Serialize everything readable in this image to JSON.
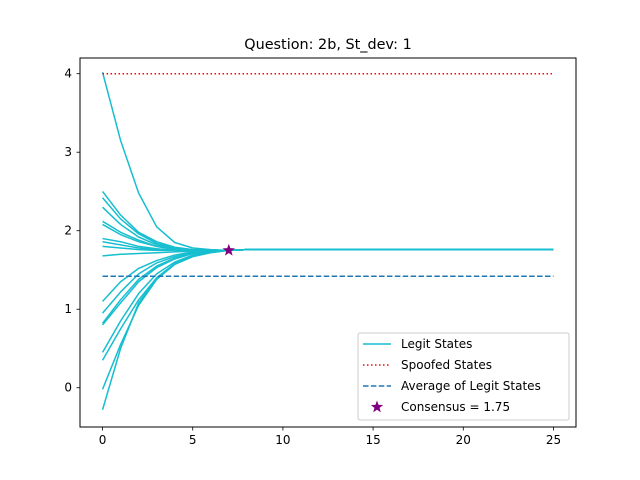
{
  "chart_data": {
    "type": "line",
    "title": "Question: 2b, St_dev: 1",
    "xlabel": "",
    "ylabel": "",
    "xlim": [
      -1.25,
      26.25
    ],
    "ylim": [
      -0.5,
      4.2
    ],
    "xticks": [
      0,
      5,
      10,
      15,
      20,
      25
    ],
    "yticks": [
      0,
      1,
      2,
      3,
      4
    ],
    "grid": false,
    "legend_position": "lower right",
    "legend": [
      {
        "label": "Legit States",
        "style": "solid",
        "color": "#17becf"
      },
      {
        "label": "Spoofed States",
        "style": "dotted",
        "color": "#ff0000"
      },
      {
        "label": "Average of Legit States",
        "style": "dashed",
        "color": "#1f77b4"
      },
      {
        "label": "Consensus = 1.75",
        "style": "star",
        "color": "#800080"
      }
    ],
    "series": [
      {
        "values": [
          4.02,
          3.15,
          2.48,
          2.05,
          1.85,
          1.78,
          1.76,
          1.75,
          1.76,
          1.76
        ]
      },
      {
        "values": [
          2.5,
          2.2,
          1.98,
          1.86,
          1.79,
          1.76,
          1.75,
          1.75,
          1.76,
          1.76
        ]
      },
      {
        "values": [
          2.42,
          2.15,
          1.96,
          1.84,
          1.78,
          1.76,
          1.75,
          1.75,
          1.76,
          1.76
        ]
      },
      {
        "values": [
          2.3,
          2.08,
          1.92,
          1.82,
          1.77,
          1.75,
          1.75,
          1.75,
          1.76,
          1.76
        ]
      },
      {
        "values": [
          2.12,
          1.98,
          1.88,
          1.8,
          1.76,
          1.75,
          1.75,
          1.75,
          1.76,
          1.76
        ]
      },
      {
        "values": [
          2.08,
          1.95,
          1.86,
          1.8,
          1.76,
          1.75,
          1.75,
          1.75,
          1.76,
          1.76
        ]
      },
      {
        "values": [
          1.9,
          1.86,
          1.8,
          1.77,
          1.75,
          1.75,
          1.75,
          1.75,
          1.76,
          1.76
        ]
      },
      {
        "values": [
          1.86,
          1.82,
          1.78,
          1.76,
          1.75,
          1.75,
          1.75,
          1.75,
          1.76,
          1.76
        ]
      },
      {
        "values": [
          1.8,
          1.78,
          1.76,
          1.75,
          1.75,
          1.75,
          1.75,
          1.75,
          1.76,
          1.76
        ]
      },
      {
        "values": [
          1.68,
          1.7,
          1.71,
          1.72,
          1.73,
          1.74,
          1.75,
          1.75,
          1.76,
          1.76
        ]
      },
      {
        "values": [
          1.1,
          1.35,
          1.52,
          1.62,
          1.69,
          1.73,
          1.74,
          1.75,
          1.76,
          1.76
        ]
      },
      {
        "values": [
          0.95,
          1.22,
          1.45,
          1.59,
          1.67,
          1.72,
          1.74,
          1.75,
          1.76,
          1.76
        ]
      },
      {
        "values": [
          0.82,
          1.12,
          1.38,
          1.55,
          1.65,
          1.71,
          1.74,
          1.75,
          1.76,
          1.76
        ]
      },
      {
        "values": [
          0.8,
          1.08,
          1.35,
          1.53,
          1.64,
          1.71,
          1.74,
          1.75,
          1.76,
          1.76
        ]
      },
      {
        "values": [
          0.45,
          0.85,
          1.2,
          1.45,
          1.6,
          1.69,
          1.73,
          1.75,
          1.76,
          1.76
        ]
      },
      {
        "values": [
          0.35,
          0.75,
          1.12,
          1.4,
          1.58,
          1.68,
          1.73,
          1.75,
          1.76,
          1.76
        ]
      },
      {
        "values": [
          -0.02,
          0.55,
          1.05,
          1.38,
          1.57,
          1.67,
          1.72,
          1.75,
          1.76,
          1.76
        ]
      },
      {
        "values": [
          -0.28,
          0.5,
          1.08,
          1.4,
          1.58,
          1.68,
          1.73,
          1.75,
          1.76,
          1.76
        ]
      }
    ],
    "series_x": [
      0,
      1,
      2,
      3,
      4,
      5,
      6,
      7,
      8,
      25
    ],
    "spoofed_value": 4.0,
    "average_value": 1.42,
    "consensus_point": {
      "x": 7,
      "y": 1.75
    }
  }
}
